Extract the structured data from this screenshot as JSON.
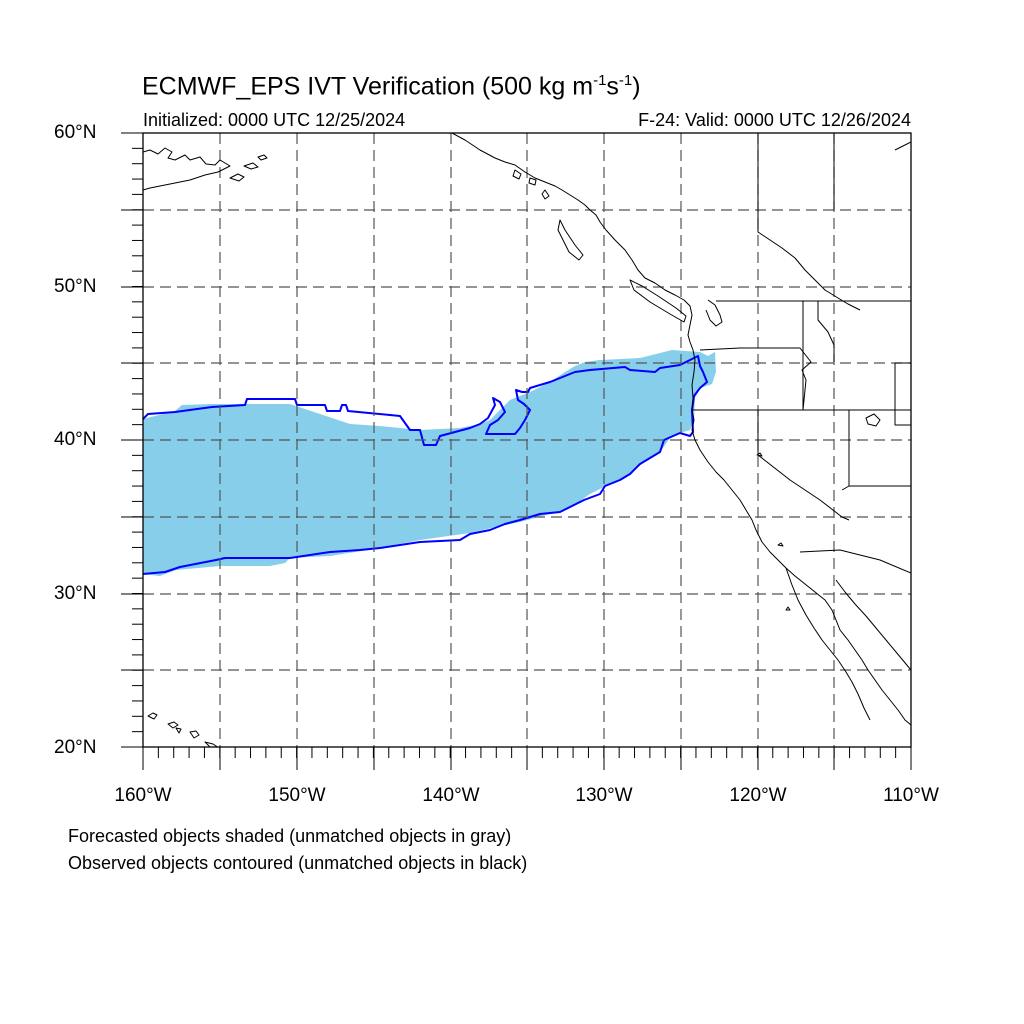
{
  "title": {
    "main": "ECMWF_EPS IVT Verification (500 kg m",
    "exp1": "-1",
    "mid": "s",
    "exp2": "-1",
    "end": ")"
  },
  "initialized": "Initialized: 0000 UTC 12/25/2024",
  "valid": "F-24: Valid: 0000 UTC 12/26/2024",
  "lat_labels": [
    "60°N",
    "50°N",
    "40°N",
    "30°N",
    "20°N"
  ],
  "lon_labels": [
    "160°W",
    "150°W",
    "140°W",
    "130°W",
    "120°W",
    "110°W"
  ],
  "notes": {
    "forecast": "Forecasted objects shaded (unmatched objects in gray)",
    "observed": "Observed objects contoured (unmatched objects in black)"
  },
  "colors": {
    "forecast_fill": "#87ceeb",
    "observed_contour": "#0000ff",
    "coast": "#000000",
    "grid": "#555555"
  }
}
